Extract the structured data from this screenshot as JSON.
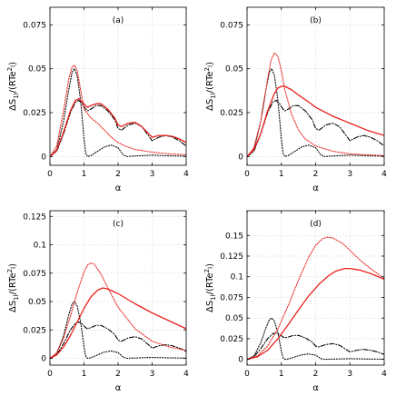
{
  "chart_data": [
    {
      "type": "line",
      "panel_label": "(a)",
      "xlabel": "α",
      "ylabel": "ΔS_1l/(RTe²l)",
      "xlim": [
        0,
        4
      ],
      "ylim": [
        -0.005,
        0.085
      ],
      "xticks": [
        "0",
        "1",
        "2",
        "3",
        "4"
      ],
      "yticks": [
        {
          "v": 0,
          "t": "0"
        },
        {
          "v": 0.025,
          "t": "0.025"
        },
        {
          "v": 0.05,
          "t": "0.05"
        },
        {
          "v": 0.075,
          "t": "0.075"
        }
      ],
      "grid": true,
      "series": [
        {
          "style": "black-dotted",
          "x": [
            0,
            0.2,
            0.4,
            0.55,
            0.65,
            0.72,
            0.8,
            0.9,
            1.0,
            1.05,
            1.1,
            1.2,
            1.4,
            1.6,
            1.8,
            2.0,
            2.15,
            2.25,
            2.5,
            3.0,
            3.5,
            4.0
          ],
          "y": [
            0,
            0.004,
            0.02,
            0.038,
            0.048,
            0.05,
            0.046,
            0.032,
            0.01,
            0.002,
            0,
            0.0005,
            0.003,
            0.0055,
            0.0065,
            0.005,
            0.001,
            0,
            0.0003,
            0.0008,
            0.0004,
            0.0002
          ]
        },
        {
          "style": "black-dashdot",
          "x": [
            0,
            0.2,
            0.4,
            0.6,
            0.75,
            0.85,
            0.95,
            1.05,
            1.1,
            1.2,
            1.35,
            1.5,
            1.7,
            1.9,
            2.0,
            2.1,
            2.3,
            2.5,
            2.7,
            2.85,
            3.0,
            3.2,
            3.4,
            3.6,
            3.8,
            4.0
          ],
          "y": [
            0,
            0.003,
            0.013,
            0.025,
            0.031,
            0.032,
            0.03,
            0.027,
            0.026,
            0.027,
            0.029,
            0.029,
            0.026,
            0.021,
            0.016,
            0.015,
            0.018,
            0.019,
            0.017,
            0.013,
            0.009,
            0.011,
            0.012,
            0.011,
            0.009,
            0.006
          ]
        },
        {
          "style": "red-dotted",
          "x": [
            0,
            0.2,
            0.4,
            0.55,
            0.65,
            0.72,
            0.8,
            0.9,
            1.0,
            1.2,
            1.4,
            1.6,
            1.8,
            2.0,
            2.2,
            2.5,
            3.0,
            3.5,
            4.0
          ],
          "y": [
            0,
            0.006,
            0.026,
            0.044,
            0.051,
            0.052,
            0.049,
            0.038,
            0.027,
            0.022,
            0.019,
            0.015,
            0.011,
            0.008,
            0.006,
            0.004,
            0.0025,
            0.0015,
            0.001
          ]
        },
        {
          "style": "red-solid",
          "x": [
            0,
            0.2,
            0.4,
            0.6,
            0.75,
            0.85,
            0.95,
            1.05,
            1.1,
            1.2,
            1.35,
            1.5,
            1.7,
            1.9,
            2.0,
            2.1,
            2.3,
            2.5,
            2.7,
            2.85,
            3.0,
            3.2,
            3.4,
            3.6,
            3.8,
            4.0
          ],
          "y": [
            0,
            0.0035,
            0.014,
            0.026,
            0.032,
            0.033,
            0.031,
            0.029,
            0.028,
            0.029,
            0.03,
            0.03,
            0.027,
            0.022,
            0.018,
            0.017,
            0.019,
            0.0195,
            0.017,
            0.014,
            0.011,
            0.012,
            0.012,
            0.0115,
            0.01,
            0.008
          ]
        }
      ]
    },
    {
      "type": "line",
      "panel_label": "(b)",
      "xlabel": "α",
      "ylabel": "ΔS_1l/(RTe²l)",
      "xlim": [
        0,
        4
      ],
      "ylim": [
        -0.005,
        0.085
      ],
      "xticks": [
        "0",
        "1",
        "2",
        "3",
        "4"
      ],
      "yticks": [
        {
          "v": 0,
          "t": "0"
        },
        {
          "v": 0.025,
          "t": "0.025"
        },
        {
          "v": 0.05,
          "t": "0.05"
        },
        {
          "v": 0.075,
          "t": "0.075"
        }
      ],
      "grid": true,
      "series": [
        {
          "style": "black-dotted",
          "x": [
            0,
            0.2,
            0.4,
            0.55,
            0.65,
            0.72,
            0.8,
            0.9,
            1.0,
            1.05,
            1.1,
            1.2,
            1.4,
            1.6,
            1.8,
            2.0,
            2.15,
            2.25,
            2.5,
            3.0,
            3.5,
            4.0
          ],
          "y": [
            0,
            0.004,
            0.02,
            0.038,
            0.048,
            0.05,
            0.046,
            0.032,
            0.01,
            0.002,
            0,
            0.0005,
            0.003,
            0.0055,
            0.0065,
            0.005,
            0.001,
            0,
            0.0003,
            0.0008,
            0.0004,
            0.0002
          ]
        },
        {
          "style": "black-dashdot",
          "x": [
            0,
            0.2,
            0.4,
            0.6,
            0.75,
            0.85,
            0.95,
            1.05,
            1.1,
            1.2,
            1.35,
            1.5,
            1.7,
            1.9,
            2.0,
            2.1,
            2.3,
            2.5,
            2.7,
            2.85,
            3.0,
            3.2,
            3.4,
            3.6,
            3.8,
            4.0
          ],
          "y": [
            0,
            0.003,
            0.013,
            0.025,
            0.031,
            0.032,
            0.03,
            0.027,
            0.026,
            0.027,
            0.029,
            0.029,
            0.026,
            0.021,
            0.016,
            0.015,
            0.018,
            0.019,
            0.017,
            0.013,
            0.009,
            0.011,
            0.012,
            0.011,
            0.009,
            0.006
          ]
        },
        {
          "style": "red-dotted",
          "x": [
            0,
            0.2,
            0.4,
            0.6,
            0.7,
            0.8,
            0.9,
            1.0,
            1.1,
            1.3,
            1.5,
            1.7,
            2.0,
            2.5,
            3.0,
            3.5,
            4.0
          ],
          "y": [
            0,
            0.005,
            0.02,
            0.044,
            0.055,
            0.059,
            0.057,
            0.049,
            0.038,
            0.024,
            0.015,
            0.01,
            0.006,
            0.003,
            0.0015,
            0.001,
            0.0005
          ]
        },
        {
          "style": "red-solid",
          "x": [
            0,
            0.2,
            0.4,
            0.6,
            0.8,
            0.9,
            1.0,
            1.1,
            1.3,
            1.5,
            1.8,
            2.0,
            2.5,
            3.0,
            3.5,
            4.0
          ],
          "y": [
            0,
            0.004,
            0.013,
            0.026,
            0.036,
            0.039,
            0.04,
            0.04,
            0.038,
            0.035,
            0.031,
            0.028,
            0.023,
            0.019,
            0.015,
            0.012
          ]
        }
      ]
    },
    {
      "type": "line",
      "panel_label": "(c)",
      "xlabel": "α",
      "ylabel": "ΔS_1l/(RTe²l)",
      "xlim": [
        0,
        4
      ],
      "ylim": [
        -0.006,
        0.13
      ],
      "xticks": [
        "0",
        "1",
        "2",
        "3",
        "4"
      ],
      "yticks": [
        {
          "v": 0,
          "t": "0"
        },
        {
          "v": 0.025,
          "t": "0.025"
        },
        {
          "v": 0.05,
          "t": "0.05"
        },
        {
          "v": 0.075,
          "t": "0.075"
        },
        {
          "v": 0.1,
          "t": "0.1"
        },
        {
          "v": 0.125,
          "t": "0.125"
        }
      ],
      "grid": true,
      "series": [
        {
          "style": "black-dotted",
          "x": [
            0,
            0.2,
            0.4,
            0.55,
            0.65,
            0.72,
            0.8,
            0.9,
            1.0,
            1.05,
            1.1,
            1.2,
            1.4,
            1.6,
            1.8,
            2.0,
            2.15,
            2.25,
            2.5,
            3.0,
            3.5,
            4.0
          ],
          "y": [
            0,
            0.004,
            0.02,
            0.038,
            0.048,
            0.05,
            0.046,
            0.032,
            0.01,
            0.002,
            0,
            0.0005,
            0.003,
            0.0055,
            0.0065,
            0.005,
            0.001,
            0,
            0.0003,
            0.0008,
            0.0004,
            0.0002
          ]
        },
        {
          "style": "black-dashdot",
          "x": [
            0,
            0.2,
            0.4,
            0.6,
            0.75,
            0.85,
            0.95,
            1.05,
            1.1,
            1.2,
            1.35,
            1.5,
            1.7,
            1.9,
            2.0,
            2.1,
            2.3,
            2.5,
            2.7,
            2.85,
            3.0,
            3.2,
            3.4,
            3.6,
            3.8,
            4.0
          ],
          "y": [
            0,
            0.003,
            0.013,
            0.025,
            0.031,
            0.032,
            0.03,
            0.027,
            0.026,
            0.027,
            0.029,
            0.029,
            0.026,
            0.021,
            0.016,
            0.015,
            0.018,
            0.019,
            0.017,
            0.013,
            0.009,
            0.011,
            0.012,
            0.011,
            0.009,
            0.006
          ]
        },
        {
          "style": "red-dotted",
          "x": [
            0,
            0.2,
            0.4,
            0.6,
            0.8,
            1.0,
            1.1,
            1.2,
            1.3,
            1.5,
            1.7,
            2.0,
            2.5,
            3.0,
            3.5,
            4.0
          ],
          "y": [
            0,
            0.005,
            0.018,
            0.037,
            0.058,
            0.076,
            0.082,
            0.084,
            0.083,
            0.074,
            0.062,
            0.045,
            0.026,
            0.015,
            0.01,
            0.007
          ]
        },
        {
          "style": "red-solid",
          "x": [
            0,
            0.2,
            0.4,
            0.6,
            0.8,
            1.0,
            1.2,
            1.4,
            1.55,
            1.7,
            2.0,
            2.5,
            3.0,
            3.5,
            4.0
          ],
          "y": [
            0,
            0.003,
            0.01,
            0.02,
            0.032,
            0.044,
            0.054,
            0.06,
            0.062,
            0.061,
            0.057,
            0.048,
            0.04,
            0.033,
            0.026
          ]
        }
      ]
    },
    {
      "type": "line",
      "panel_label": "(d)",
      "xlabel": "α",
      "ylabel": "ΔS_1l/(RTe²l)",
      "xlim": [
        0,
        4
      ],
      "ylim": [
        -0.007,
        0.18
      ],
      "xticks": [
        "0",
        "1",
        "2",
        "3",
        "4"
      ],
      "yticks": [
        {
          "v": 0,
          "t": "0"
        },
        {
          "v": 0.025,
          "t": "0.025"
        },
        {
          "v": 0.05,
          "t": "0.05"
        },
        {
          "v": 0.075,
          "t": "0.075"
        },
        {
          "v": 0.1,
          "t": "0.1"
        },
        {
          "v": 0.125,
          "t": "0.125"
        },
        {
          "v": 0.15,
          "t": "0.15"
        }
      ],
      "grid": true,
      "series": [
        {
          "style": "black-dotted",
          "x": [
            0,
            0.2,
            0.4,
            0.55,
            0.65,
            0.72,
            0.8,
            0.9,
            1.0,
            1.05,
            1.1,
            1.2,
            1.4,
            1.6,
            1.8,
            2.0,
            2.15,
            2.25,
            2.5,
            3.0,
            3.5,
            4.0
          ],
          "y": [
            0,
            0.004,
            0.02,
            0.038,
            0.048,
            0.05,
            0.046,
            0.032,
            0.01,
            0.002,
            0,
            0.0005,
            0.003,
            0.0055,
            0.0065,
            0.005,
            0.001,
            0,
            0.0003,
            0.0008,
            0.0004,
            0.0002
          ]
        },
        {
          "style": "black-dashdot",
          "x": [
            0,
            0.2,
            0.4,
            0.6,
            0.75,
            0.85,
            0.95,
            1.05,
            1.1,
            1.2,
            1.35,
            1.5,
            1.7,
            1.9,
            2.0,
            2.1,
            2.3,
            2.5,
            2.7,
            2.85,
            3.0,
            3.2,
            3.4,
            3.6,
            3.8,
            4.0
          ],
          "y": [
            0,
            0.003,
            0.013,
            0.025,
            0.031,
            0.032,
            0.03,
            0.027,
            0.026,
            0.027,
            0.029,
            0.029,
            0.026,
            0.021,
            0.016,
            0.015,
            0.018,
            0.019,
            0.017,
            0.013,
            0.009,
            0.011,
            0.012,
            0.011,
            0.009,
            0.006
          ]
        },
        {
          "style": "red-dotted",
          "x": [
            0,
            0.3,
            0.6,
            0.9,
            1.2,
            1.5,
            1.8,
            2.0,
            2.2,
            2.35,
            2.5,
            2.8,
            3.0,
            3.3,
            3.6,
            4.0
          ],
          "y": [
            0,
            0.004,
            0.016,
            0.037,
            0.065,
            0.096,
            0.124,
            0.138,
            0.146,
            0.148,
            0.147,
            0.14,
            0.132,
            0.12,
            0.11,
            0.098
          ]
        },
        {
          "style": "red-solid",
          "x": [
            0,
            0.3,
            0.6,
            0.9,
            1.2,
            1.5,
            1.8,
            2.1,
            2.4,
            2.6,
            2.85,
            3.0,
            3.3,
            3.6,
            4.0
          ],
          "y": [
            0,
            0.003,
            0.011,
            0.025,
            0.042,
            0.06,
            0.077,
            0.091,
            0.102,
            0.107,
            0.11,
            0.11,
            0.108,
            0.104,
            0.097
          ]
        }
      ]
    }
  ]
}
